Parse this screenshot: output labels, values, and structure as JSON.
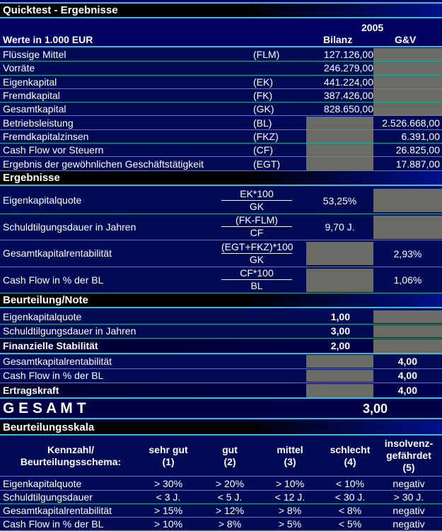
{
  "title": "Quicktest - Ergebnisse",
  "year": "2005",
  "units": "Werte in 1.000 EUR",
  "col_bilanz": "Bilanz",
  "col_guv": "G&V",
  "colors": {
    "background": "#000060",
    "accent_line": "#33c0d0",
    "gray_cell": "#6b6b66"
  },
  "values": [
    {
      "label": "Flüssige Mittel",
      "abbr": "(FLM)",
      "bilanz": "127.126,00",
      "guv": ""
    },
    {
      "label": "Vorräte",
      "abbr": "",
      "bilanz": "246.279,00",
      "guv": ""
    },
    {
      "label": "Eigenkapital",
      "abbr": "(EK)",
      "bilanz": "441.224,00",
      "guv": ""
    },
    {
      "label": "Fremdkapital",
      "abbr": "(FK)",
      "bilanz": "387.426,00",
      "guv": ""
    },
    {
      "label": "Gesamtkapital",
      "abbr": "(GK)",
      "bilanz": "828.650,00",
      "guv": ""
    },
    {
      "label": "Betriebsleistung",
      "abbr": "(BL)",
      "bilanz": "",
      "guv": "2.526.668,00"
    },
    {
      "label": "Fremdkapitalzinsen",
      "abbr": "(FKZ)",
      "bilanz": "",
      "guv": "6.391,00"
    },
    {
      "label": "Cash Flow vor Steuern",
      "abbr": "(CF)",
      "bilanz": "",
      "guv": "26.825,00"
    },
    {
      "label": "Ergebnis der gewöhnlichen Geschäftstätigkeit",
      "abbr": "(EGT)",
      "bilanz": "",
      "guv": "17.887,00"
    }
  ],
  "ergebnisse": {
    "title": "Ergebnisse",
    "rows": [
      {
        "label": "Eigenkapitalquote",
        "num": "EK*100",
        "den": "GK",
        "bilanz": "53,25%",
        "guv": ""
      },
      {
        "label": "Schuldtilgungsdauer in Jahren",
        "num": "(FK-FLM)",
        "den": "CF",
        "bilanz": "9,70 J.",
        "guv": ""
      },
      {
        "label": "Gesamtkapitalrentabilität",
        "num": "(EGT+FKZ)*100",
        "den": "GK",
        "bilanz": "",
        "guv": "2,93%"
      },
      {
        "label": "Cash Flow in % der BL",
        "num": "CF*100",
        "den": "BL",
        "bilanz": "",
        "guv": "1,06%"
      }
    ]
  },
  "beurteilung": {
    "title": "Beurteilung/Note",
    "rows": [
      {
        "label": "Eigenkapitalquote",
        "bilanz": "1,00",
        "guv": "",
        "bold": false
      },
      {
        "label": "Schuldtilgungsdauer in Jahren",
        "bilanz": "3,00",
        "guv": "",
        "bold": false
      },
      {
        "label": "Finanzielle Stabilität",
        "bilanz": "2,00",
        "guv": "",
        "bold": true
      },
      {
        "label": "Gesamtkapitalrentabilität",
        "bilanz": "",
        "guv": "4,00",
        "bold": false
      },
      {
        "label": "Cash Flow in % der BL",
        "bilanz": "",
        "guv": "4,00",
        "bold": false
      },
      {
        "label": "Ertragskraft",
        "bilanz": "",
        "guv": "4,00",
        "bold": true
      }
    ],
    "gesamt_label": "G E S A M T",
    "gesamt_value": "3,00"
  },
  "skala": {
    "title": "Beurteilungsskala",
    "headers": [
      "Kennzahl/\nBeurteilungsschema:",
      "sehr gut\n(1)",
      "gut\n(2)",
      "mittel\n(3)",
      "schlecht\n(4)",
      "insolvenz-\ngefährdet\n(5)"
    ],
    "rows": [
      [
        "Eigenkapitalquote",
        "> 30%",
        "> 20%",
        "> 10%",
        "< 10%",
        "negativ"
      ],
      [
        "Schuldtilgungsdauer",
        "< 3 J.",
        "< 5 J.",
        "< 12 J.",
        "< 30 J.",
        "> 30 J."
      ],
      [
        "Gesamtkapitalrentabilität",
        "> 15%",
        "> 12%",
        "> 8%",
        "< 8%",
        "negativ"
      ],
      [
        "Cash Flow in % der BL",
        "> 10%",
        "> 8%",
        "> 5%",
        "< 5%",
        "negativ"
      ]
    ]
  }
}
